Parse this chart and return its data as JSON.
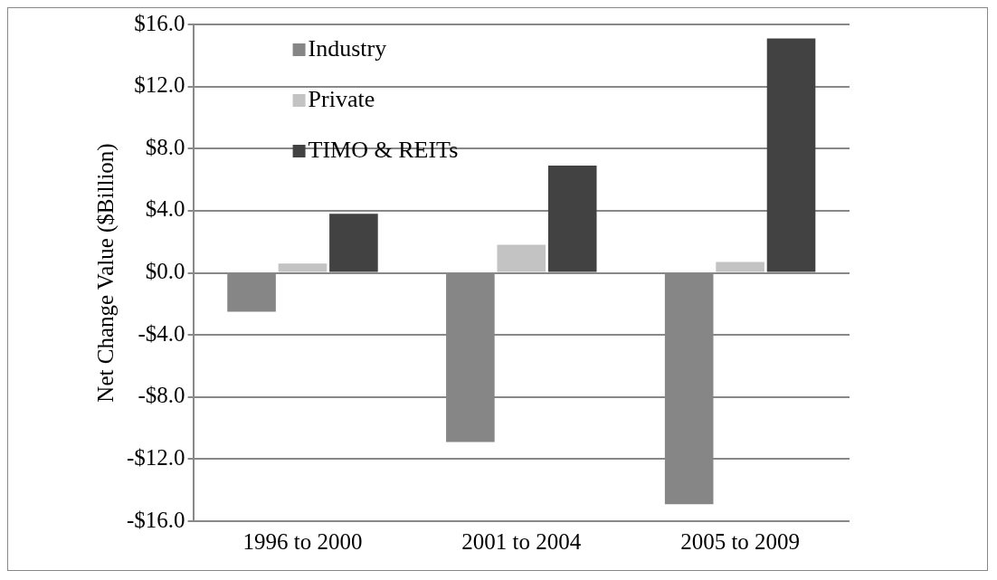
{
  "chart_data": {
    "type": "bar",
    "ylabel": "Net Change Value ($Billion)",
    "categories": [
      "1996 to 2000",
      "2001 to 2004",
      "2005 to 2009"
    ],
    "series": [
      {
        "name": "Industry",
        "color": "#868686",
        "values": [
          -2.5,
          -10.9,
          -14.9
        ]
      },
      {
        "name": "Private",
        "color": "#c3c3c3",
        "values": [
          0.6,
          1.8,
          0.7
        ]
      },
      {
        "name": "TIMO & REITs",
        "color": "#424242",
        "values": [
          3.8,
          6.9,
          15.1
        ]
      }
    ],
    "ylim": [
      -16,
      16
    ],
    "yticks": [
      {
        "value": -16,
        "label": "-$16.0"
      },
      {
        "value": -12,
        "label": "-$12.0"
      },
      {
        "value": -8,
        "label": "-$8.0"
      },
      {
        "value": -4,
        "label": "-$4.0"
      },
      {
        "value": 0,
        "label": "$0.0"
      },
      {
        "value": 4,
        "label": "$4.0"
      },
      {
        "value": 8,
        "label": "$8.0"
      },
      {
        "value": 12,
        "label": "$12.0"
      },
      {
        "value": 16,
        "label": "$16.0"
      }
    ],
    "grid": "y",
    "legend": "top left"
  }
}
